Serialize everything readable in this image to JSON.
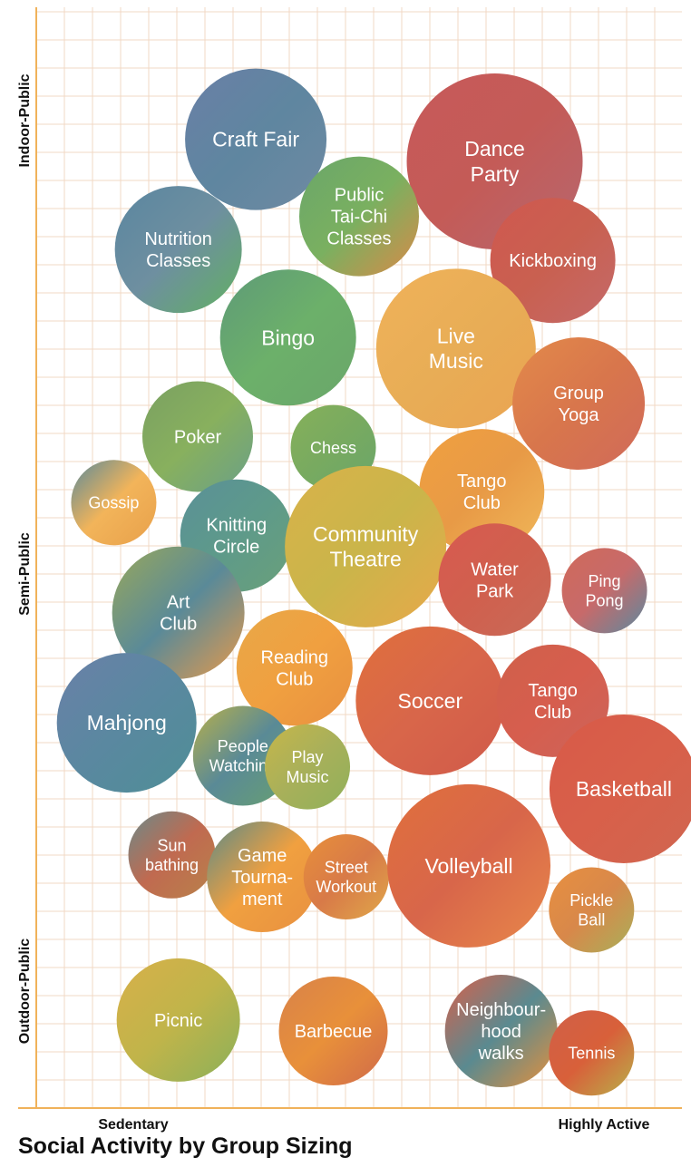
{
  "chart_data": {
    "type": "bubble",
    "title": "Social Activity by Group Sizing",
    "x_axis": {
      "labels": [
        "Sedentary",
        "Highly Active"
      ]
    },
    "y_axis": {
      "labels": [
        "Indoor-Public",
        "Semi-Public",
        "Outdoor-Public"
      ]
    },
    "grid": true,
    "colors": {
      "grid": "#f2d9c4",
      "axis": "#f0b25a"
    },
    "bubbles": [
      {
        "label": [
          "Craft Fair"
        ],
        "palette": [
          "#6a7fa6",
          "#5f86a0",
          "#6f8aa2"
        ],
        "x": 0.34,
        "y": 0.88,
        "size": 78
      },
      {
        "label": [
          "Dance",
          "Party"
        ],
        "palette": [
          "#c75a5a",
          "#c45b57",
          "#b6676f"
        ],
        "x": 0.71,
        "y": 0.86,
        "size": 97
      },
      {
        "label": [
          "Public",
          "Tai-Chi",
          "Classes"
        ],
        "palette": [
          "#6aa66a",
          "#7ab060",
          "#d98a48"
        ],
        "x": 0.5,
        "y": 0.81,
        "size": 66
      },
      {
        "label": [
          "Nutrition",
          "Classes"
        ],
        "palette": [
          "#5a86a0",
          "#6e8fa0",
          "#62b062"
        ],
        "x": 0.22,
        "y": 0.78,
        "size": 70
      },
      {
        "label": [
          "Kickboxing"
        ],
        "palette": [
          "#d0584f",
          "#c96050",
          "#c46a6a"
        ],
        "x": 0.8,
        "y": 0.77,
        "size": 69
      },
      {
        "label": [
          "Bingo"
        ],
        "palette": [
          "#5e9a78",
          "#6cb06a",
          "#6aa66a"
        ],
        "x": 0.39,
        "y": 0.7,
        "size": 75
      },
      {
        "label": [
          "Live",
          "Music"
        ],
        "palette": [
          "#f0b25a",
          "#e8ad56",
          "#eaa452"
        ],
        "x": 0.65,
        "y": 0.69,
        "size": 88
      },
      {
        "label": [
          "Group",
          "Yoga"
        ],
        "palette": [
          "#e38a4a",
          "#d8764c",
          "#d06a5a"
        ],
        "x": 0.84,
        "y": 0.64,
        "size": 73
      },
      {
        "label": [
          "Poker"
        ],
        "palette": [
          "#7aa062",
          "#88b05e",
          "#6aa088"
        ],
        "x": 0.25,
        "y": 0.61,
        "size": 61
      },
      {
        "label": [
          "Chess"
        ],
        "palette": [
          "#86b05a",
          "#78aa60",
          "#6aa66a"
        ],
        "x": 0.46,
        "y": 0.6,
        "size": 47
      },
      {
        "label": [
          "Tango",
          "Club"
        ],
        "palette": [
          "#f0a040",
          "#e89a46",
          "#f0b85a"
        ],
        "x": 0.69,
        "y": 0.56,
        "size": 69
      },
      {
        "label": [
          "Gossip"
        ],
        "palette": [
          "#5a8a9a",
          "#f2b45a",
          "#e8a04a"
        ],
        "x": 0.12,
        "y": 0.55,
        "size": 47
      },
      {
        "label": [
          "Knitting",
          "Circle"
        ],
        "palette": [
          "#5a9098",
          "#5e9a8a",
          "#6aa07a"
        ],
        "x": 0.31,
        "y": 0.52,
        "size": 62
      },
      {
        "label": [
          "Community",
          "Theatre"
        ],
        "palette": [
          "#d9b24a",
          "#cab54a",
          "#e8a84a"
        ],
        "x": 0.51,
        "y": 0.51,
        "size": 89
      },
      {
        "label": [
          "Water",
          "Park"
        ],
        "palette": [
          "#d85a50",
          "#d0604e",
          "#c86a58"
        ],
        "x": 0.71,
        "y": 0.48,
        "size": 62
      },
      {
        "label": [
          "Ping",
          "Pong"
        ],
        "palette": [
          "#d06a5a",
          "#c76a6a",
          "#5a8aa0"
        ],
        "x": 0.88,
        "y": 0.47,
        "size": 47
      },
      {
        "label": [
          "Art",
          "Club"
        ],
        "palette": [
          "#9aa85a",
          "#5a8a98",
          "#e89a4a"
        ],
        "x": 0.22,
        "y": 0.45,
        "size": 73
      },
      {
        "label": [
          "Reading",
          "Club"
        ],
        "palette": [
          "#e8a848",
          "#f0a040",
          "#e89040"
        ],
        "x": 0.4,
        "y": 0.4,
        "size": 64
      },
      {
        "label": [
          "Soccer"
        ],
        "palette": [
          "#e0703c",
          "#d8664a",
          "#d05a4a"
        ],
        "x": 0.61,
        "y": 0.37,
        "size": 82
      },
      {
        "label": [
          "Tango",
          "Club"
        ],
        "palette": [
          "#d0604a",
          "#d65e4e",
          "#cc645a"
        ],
        "x": 0.8,
        "y": 0.37,
        "size": 62
      },
      {
        "label": [
          "Mahjong"
        ],
        "palette": [
          "#6a80a8",
          "#5a88a0",
          "#4f8e96"
        ],
        "x": 0.14,
        "y": 0.35,
        "size": 77
      },
      {
        "label": [
          "People",
          "Watching"
        ],
        "palette": [
          "#b8b04a",
          "#5a8a96",
          "#68a070"
        ],
        "x": 0.32,
        "y": 0.32,
        "size": 55
      },
      {
        "label": [
          "Play",
          "Music"
        ],
        "palette": [
          "#c6b64a",
          "#a8b05a",
          "#90b05a"
        ],
        "x": 0.42,
        "y": 0.31,
        "size": 47
      },
      {
        "label": [
          "Basketball"
        ],
        "palette": [
          "#d85a48",
          "#d8604a",
          "#d06650"
        ],
        "x": 0.91,
        "y": 0.29,
        "size": 82
      },
      {
        "label": [
          "Sun",
          "bathing"
        ],
        "palette": [
          "#6a8a8a",
          "#c06a50",
          "#b8824a"
        ],
        "x": 0.21,
        "y": 0.23,
        "size": 48
      },
      {
        "label": [
          "Game",
          "Tourna-",
          "ment"
        ],
        "palette": [
          "#5a8a88",
          "#f0a040",
          "#e89040"
        ],
        "x": 0.35,
        "y": 0.21,
        "size": 61
      },
      {
        "label": [
          "Street",
          "Workout"
        ],
        "palette": [
          "#e8903a",
          "#d87a48",
          "#e0a84a"
        ],
        "x": 0.48,
        "y": 0.21,
        "size": 47
      },
      {
        "label": [
          "Volleyball"
        ],
        "palette": [
          "#e0703c",
          "#d8664a",
          "#e8884a"
        ],
        "x": 0.67,
        "y": 0.22,
        "size": 90
      },
      {
        "label": [
          "Pickle",
          "Ball"
        ],
        "palette": [
          "#e89040",
          "#d8884a",
          "#a8b05a"
        ],
        "x": 0.86,
        "y": 0.18,
        "size": 47
      },
      {
        "label": [
          "Picnic"
        ],
        "palette": [
          "#d8b04a",
          "#c0b44a",
          "#8ab05a"
        ],
        "x": 0.22,
        "y": 0.08,
        "size": 68
      },
      {
        "label": [
          "Barbecue"
        ],
        "palette": [
          "#d8824a",
          "#e8903a",
          "#d06a4a"
        ],
        "x": 0.46,
        "y": 0.07,
        "size": 60
      },
      {
        "label": [
          "Neighbour-",
          "hood",
          "walks"
        ],
        "palette": [
          "#d8604a",
          "#5a8a90",
          "#e8903a"
        ],
        "x": 0.72,
        "y": 0.07,
        "size": 62
      },
      {
        "label": [
          "Tennis"
        ],
        "palette": [
          "#d06048",
          "#d8603a",
          "#b8b04a"
        ],
        "x": 0.86,
        "y": 0.05,
        "size": 47
      }
    ]
  }
}
